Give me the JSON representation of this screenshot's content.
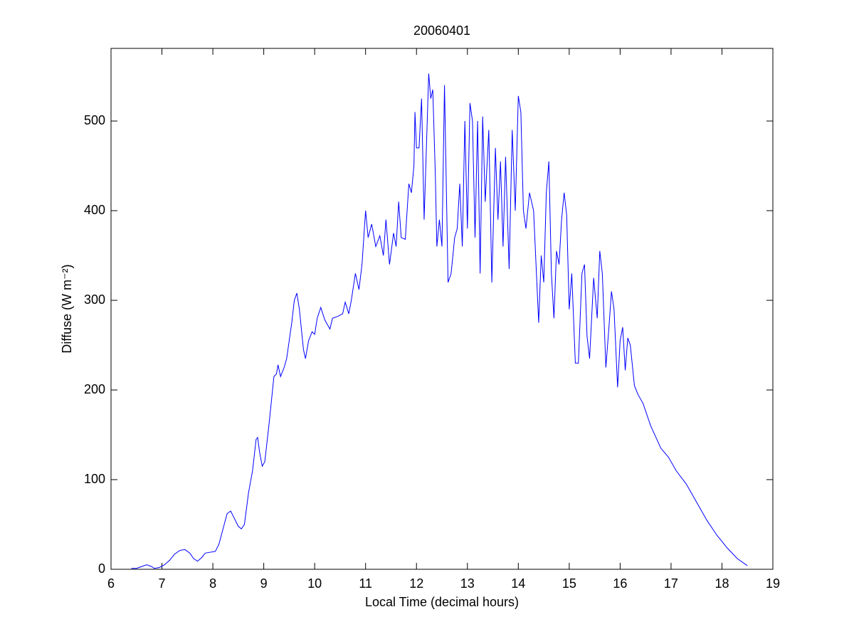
{
  "chart_data": {
    "type": "line",
    "title": "20060401",
    "x_label": "Local Time (decimal hours)",
    "y_label": "Diffuse (W m⁻²)",
    "color": "#0000ff",
    "x": [
      6.4,
      6.5,
      6.6,
      6.7,
      6.8,
      6.85,
      6.95,
      7.05,
      7.15,
      7.25,
      7.35,
      7.45,
      7.55,
      7.62,
      7.7,
      7.78,
      7.85,
      7.95,
      8.05,
      8.12,
      8.2,
      8.28,
      8.35,
      8.42,
      8.5,
      8.56,
      8.62,
      8.7,
      8.78,
      8.85,
      8.88,
      8.92,
      8.97,
      9.02,
      9.1,
      9.2,
      9.25,
      9.28,
      9.33,
      9.4,
      9.45,
      9.5,
      9.55,
      9.6,
      9.65,
      9.7,
      9.78,
      9.82,
      9.88,
      9.95,
      10.0,
      10.05,
      10.12,
      10.2,
      10.3,
      10.35,
      10.45,
      10.55,
      10.6,
      10.67,
      10.72,
      10.8,
      10.87,
      10.93,
      11.0,
      11.05,
      11.12,
      11.2,
      11.28,
      11.35,
      11.4,
      11.47,
      11.55,
      11.6,
      11.65,
      11.7,
      11.78,
      11.85,
      11.9,
      11.95,
      11.97,
      12.0,
      12.05,
      12.1,
      12.15,
      12.2,
      12.24,
      12.28,
      12.32,
      12.37,
      12.4,
      12.45,
      12.5,
      12.55,
      12.62,
      12.68,
      12.75,
      12.8,
      12.85,
      12.9,
      12.95,
      13.0,
      13.05,
      13.1,
      13.15,
      13.2,
      13.25,
      13.3,
      13.35,
      13.42,
      13.48,
      13.55,
      13.6,
      13.65,
      13.7,
      13.75,
      13.82,
      13.88,
      13.94,
      14.0,
      14.05,
      14.1,
      14.15,
      14.22,
      14.3,
      14.4,
      14.45,
      14.5,
      14.55,
      14.6,
      14.65,
      14.7,
      14.75,
      14.8,
      14.85,
      14.9,
      14.95,
      15.0,
      15.05,
      15.12,
      15.18,
      15.25,
      15.3,
      15.35,
      15.4,
      15.48,
      15.55,
      15.6,
      15.65,
      15.72,
      15.78,
      15.83,
      15.88,
      15.95,
      16.0,
      16.05,
      16.1,
      16.15,
      16.2,
      16.28,
      16.35,
      16.45,
      16.6,
      16.8,
      16.95,
      17.1,
      17.3,
      17.5,
      17.7,
      17.9,
      18.1,
      18.3,
      18.5
    ],
    "values": [
      1,
      1,
      3,
      5,
      3,
      1,
      2,
      5,
      10,
      17,
      21,
      22,
      18,
      12,
      9,
      13,
      18,
      19,
      20,
      28,
      45,
      62,
      65,
      57,
      48,
      45,
      50,
      85,
      110,
      145,
      147,
      130,
      115,
      120,
      160,
      215,
      218,
      228,
      215,
      225,
      235,
      255,
      275,
      300,
      308,
      290,
      245,
      235,
      255,
      265,
      262,
      280,
      292,
      278,
      268,
      280,
      282,
      285,
      298,
      285,
      300,
      330,
      312,
      340,
      400,
      370,
      385,
      360,
      372,
      350,
      390,
      340,
      375,
      360,
      410,
      370,
      368,
      430,
      420,
      450,
      510,
      470,
      470,
      525,
      390,
      480,
      553,
      525,
      535,
      440,
      360,
      390,
      360,
      540,
      320,
      330,
      370,
      380,
      430,
      360,
      500,
      380,
      520,
      500,
      370,
      500,
      330,
      505,
      410,
      490,
      320,
      470,
      390,
      455,
      360,
      460,
      335,
      490,
      400,
      528,
      510,
      400,
      380,
      420,
      400,
      275,
      350,
      320,
      420,
      455,
      330,
      280,
      355,
      340,
      390,
      420,
      395,
      290,
      330,
      230,
      230,
      330,
      340,
      260,
      235,
      325,
      280,
      355,
      330,
      225,
      270,
      310,
      290,
      203,
      255,
      270,
      222,
      258,
      250,
      205,
      195,
      185,
      160,
      135,
      125,
      110,
      95,
      75,
      55,
      38,
      24,
      12,
      4
    ],
    "xlim": [
      6,
      19
    ],
    "xticks": [
      6,
      7,
      8,
      9,
      10,
      11,
      12,
      13,
      14,
      15,
      16,
      17,
      18,
      19
    ],
    "ylim": [
      0,
      581
    ],
    "yticks": [
      0,
      100,
      200,
      300,
      400,
      500
    ]
  }
}
